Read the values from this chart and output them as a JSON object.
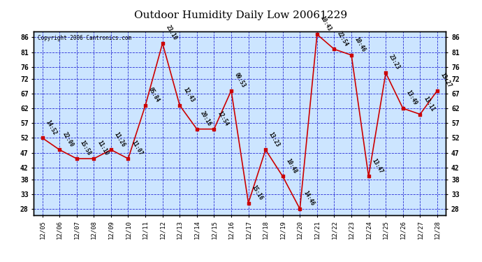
{
  "title": "Outdoor Humidity Daily Low 20061229",
  "copyright": "Copyright 2006 Cantronics.com",
  "x_labels": [
    "12/05",
    "12/06",
    "12/07",
    "12/08",
    "12/09",
    "12/10",
    "12/11",
    "12/12",
    "12/13",
    "12/14",
    "12/15",
    "12/16",
    "12/17",
    "12/18",
    "12/19",
    "12/20",
    "12/21",
    "12/22",
    "12/23",
    "12/24",
    "12/25",
    "12/26",
    "12/27",
    "12/28"
  ],
  "y_values": [
    52,
    48,
    45,
    45,
    48,
    45,
    63,
    84,
    63,
    55,
    55,
    68,
    30,
    48,
    39,
    28,
    87,
    82,
    80,
    39,
    74,
    62,
    60,
    68
  ],
  "time_labels": [
    "14:52",
    "22:00",
    "15:58",
    "11:10",
    "11:26",
    "11:07",
    "05:84",
    "23:10",
    "12:43",
    "20:16",
    "12:54",
    "09:53",
    "15:16",
    "13:23",
    "10:48",
    "14:46",
    "10:43",
    "22:54",
    "10:46",
    "13:47",
    "23:23",
    "13:49",
    "13:11",
    "13:27"
  ],
  "line_color": "#cc0000",
  "marker_color": "#cc0000",
  "background_color": "#cce5ff",
  "grid_color": "#0000cc",
  "text_color": "#000000",
  "y_ticks": [
    28,
    33,
    38,
    42,
    47,
    52,
    57,
    62,
    67,
    72,
    76,
    81,
    86
  ],
  "y_min": 26,
  "y_max": 88,
  "title_fontsize": 11,
  "label_fontsize": 7
}
